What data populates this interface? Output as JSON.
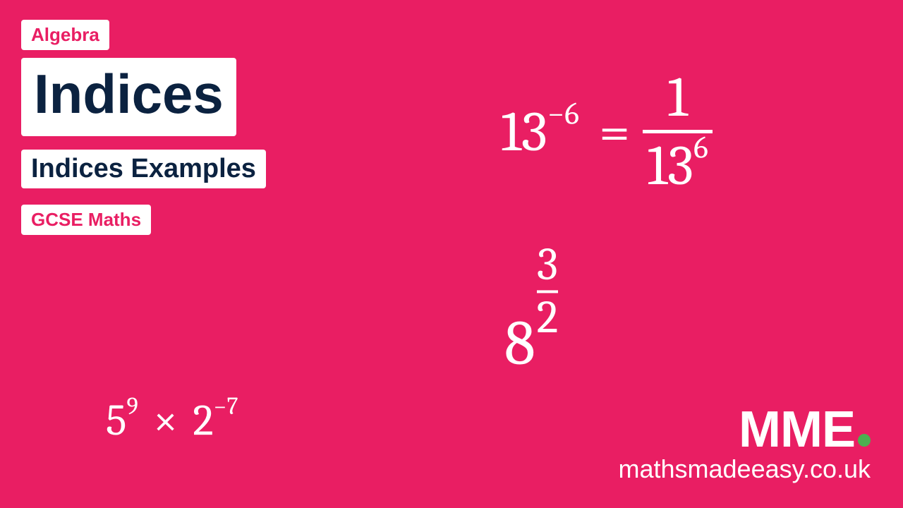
{
  "background_color": "#e91e63",
  "accent_green": "#4caf50",
  "tags": {
    "category": {
      "text": "Algebra",
      "color": "#e91e63"
    },
    "title": {
      "text": "Indices",
      "color": "#0b2240"
    },
    "subtitle": {
      "text": "Indices Examples",
      "color": "#0b2240"
    },
    "level": {
      "text": "GCSE Maths",
      "color": "#e91e63"
    }
  },
  "equations": {
    "neg_exp": {
      "base_left": "13",
      "exp_left": "−6",
      "equals": "=",
      "numerator": "1",
      "denom_base": "13",
      "denom_exp": "6"
    },
    "frac_exp": {
      "base": "8",
      "exp_num": "3",
      "exp_den": "2"
    },
    "product": {
      "a_base": "5",
      "a_exp": "9",
      "times": "×",
      "b_base": "2",
      "b_exp": "−7"
    }
  },
  "logo": {
    "brand": "MME",
    "url": "mathsmadeeasy.co.uk"
  }
}
